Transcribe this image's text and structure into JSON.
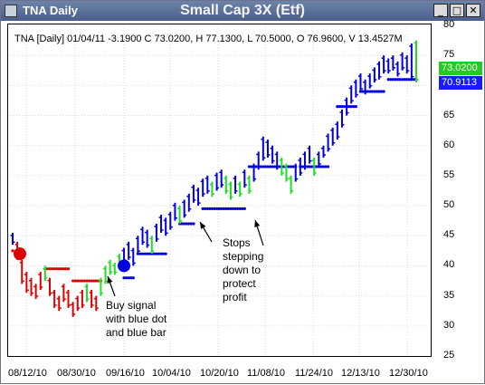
{
  "window": {
    "app_title": "TNA Daily",
    "chart_title": "Small Cap 3X (Etf)",
    "minimize": "_",
    "maximize": "□",
    "close": "✕"
  },
  "info_line": "TNA [Daily] 01/04/11  -3.1900 C 73.0200, H 77.1300, L 70.5000, O 76.9600, V 13.4527M",
  "price_badges": {
    "close": "73.0200",
    "stop": "70.9113",
    "close_bg": "#22cc22",
    "stop_bg": "#1a1aff"
  },
  "annotations": {
    "buy_signal": [
      "Buy signal",
      "with blue dot",
      "and blue bar"
    ],
    "stops": [
      "Stops",
      "stepping",
      "down to",
      "protect",
      "profit"
    ]
  },
  "colors": {
    "up": "#0000dd",
    "neutral": "#22dd22",
    "down": "#dd0000"
  },
  "chart_data": {
    "type": "bar",
    "ylim": [
      25,
      80
    ],
    "y_ticks": [
      25,
      30,
      35,
      40,
      45,
      50,
      55,
      60,
      65,
      70,
      75,
      80
    ],
    "x_ticks": [
      "08/12/10",
      "08/30/10",
      "09/16/10",
      "10/04/10",
      "10/20/10",
      "11/08/10",
      "11/24/10",
      "12/13/10",
      "12/30/10"
    ],
    "ohlc": [
      [
        0,
        45.5,
        43.5,
        "b"
      ],
      [
        1,
        44,
        41,
        "r"
      ],
      [
        2,
        41,
        37,
        "r"
      ],
      [
        3,
        39,
        35.5,
        "r"
      ],
      [
        4,
        38,
        35,
        "r"
      ],
      [
        5,
        37,
        34.5,
        "r"
      ],
      [
        6,
        39,
        36,
        "r"
      ],
      [
        7,
        40,
        37.5,
        "g"
      ],
      [
        8,
        38,
        35,
        "r"
      ],
      [
        9,
        36,
        33,
        "r"
      ],
      [
        10,
        35,
        32.5,
        "r"
      ],
      [
        11,
        37,
        34,
        "r"
      ],
      [
        12,
        36,
        33,
        "r"
      ],
      [
        13,
        34,
        31.5,
        "r"
      ],
      [
        14,
        35,
        32.5,
        "r"
      ],
      [
        15,
        36,
        33,
        "r"
      ],
      [
        16,
        37,
        34,
        "g"
      ],
      [
        17,
        36,
        33,
        "r"
      ],
      [
        18,
        35,
        32.5,
        "r"
      ],
      [
        19,
        38,
        35,
        "g"
      ],
      [
        20,
        40,
        37,
        "g"
      ],
      [
        21,
        41,
        38.5,
        "g"
      ],
      [
        22,
        40.5,
        38.5,
        "g"
      ],
      [
        23,
        42,
        39.5,
        "g"
      ],
      [
        24,
        43,
        40.5,
        "b"
      ],
      [
        25,
        44,
        41,
        "b"
      ],
      [
        26,
        43,
        40,
        "b"
      ],
      [
        27,
        45,
        42,
        "b"
      ],
      [
        28,
        46.5,
        43.5,
        "b"
      ],
      [
        29,
        46,
        43,
        "b"
      ],
      [
        30,
        45,
        42,
        "g"
      ],
      [
        31,
        47,
        44,
        "b"
      ],
      [
        32,
        48.5,
        45.5,
        "b"
      ],
      [
        33,
        48,
        45,
        "b"
      ],
      [
        34,
        49,
        46,
        "b"
      ],
      [
        35,
        50.5,
        47.5,
        "b"
      ],
      [
        36,
        50,
        47,
        "g"
      ],
      [
        37,
        51,
        48,
        "b"
      ],
      [
        38,
        52,
        49,
        "b"
      ],
      [
        39,
        53.5,
        50.5,
        "b"
      ],
      [
        40,
        53,
        50,
        "b"
      ],
      [
        41,
        54.5,
        51.5,
        "b"
      ],
      [
        42,
        55,
        52,
        "b"
      ],
      [
        43,
        54,
        51.5,
        "g"
      ],
      [
        44,
        55.5,
        52.5,
        "b"
      ],
      [
        45,
        56,
        53,
        "b"
      ],
      [
        46,
        55,
        52,
        "g"
      ],
      [
        47,
        54,
        51,
        "g"
      ],
      [
        48,
        55,
        52,
        "b"
      ],
      [
        49,
        54,
        51.5,
        "g"
      ],
      [
        50,
        56,
        53,
        "b"
      ],
      [
        51,
        55,
        52,
        "g"
      ],
      [
        52,
        57,
        54,
        "b"
      ],
      [
        53,
        59,
        56,
        "b"
      ],
      [
        54,
        61.5,
        57.5,
        "b"
      ],
      [
        55,
        61,
        58,
        "b"
      ],
      [
        56,
        60,
        57,
        "b"
      ],
      [
        57,
        59,
        56,
        "b"
      ],
      [
        58,
        58,
        55,
        "g"
      ],
      [
        59,
        57,
        54,
        "g"
      ],
      [
        60,
        55,
        52,
        "g"
      ],
      [
        61,
        57,
        54,
        "b"
      ],
      [
        62,
        58,
        55,
        "b"
      ],
      [
        63,
        59,
        56,
        "b"
      ],
      [
        64,
        60,
        57,
        "b"
      ],
      [
        65,
        58,
        55,
        "g"
      ],
      [
        66,
        59,
        56.5,
        "b"
      ],
      [
        67,
        60,
        58,
        "b"
      ],
      [
        68,
        62,
        59,
        "b"
      ],
      [
        69,
        63,
        60,
        "b"
      ],
      [
        70,
        64,
        61,
        "b"
      ],
      [
        71,
        66,
        63,
        "b"
      ],
      [
        72,
        68,
        65,
        "b"
      ],
      [
        73,
        70,
        67,
        "b"
      ],
      [
        74,
        71,
        68,
        "b"
      ],
      [
        75,
        72,
        69,
        "b"
      ],
      [
        76,
        71,
        68.5,
        "b"
      ],
      [
        77,
        72,
        69.5,
        "b"
      ],
      [
        78,
        73,
        70.5,
        "b"
      ],
      [
        79,
        74,
        71,
        "b"
      ],
      [
        80,
        75,
        72,
        "b"
      ],
      [
        81,
        74.5,
        72,
        "b"
      ],
      [
        82,
        75,
        72.5,
        "b"
      ],
      [
        83,
        74,
        71.5,
        "b"
      ],
      [
        84,
        75.5,
        72.5,
        "b"
      ],
      [
        85,
        75,
        72,
        "b"
      ],
      [
        86,
        77,
        71,
        "b"
      ],
      [
        87,
        77.5,
        70.5,
        "g"
      ]
    ],
    "stop_levels": [
      {
        "from": 0,
        "to": 0,
        "value": 42.5,
        "color": "r"
      },
      {
        "from": 7,
        "to": 12,
        "value": 39.5,
        "color": "r"
      },
      {
        "from": 13,
        "to": 19,
        "value": 37.5,
        "color": "r"
      },
      {
        "from": 24,
        "to": 26,
        "value": 38,
        "color": "b"
      },
      {
        "from": 27,
        "to": 33,
        "value": 42,
        "color": "b"
      },
      {
        "from": 36,
        "to": 39,
        "value": 47,
        "color": "b"
      },
      {
        "from": 41,
        "to": 50,
        "value": 49.5,
        "color": "b"
      },
      {
        "from": 51,
        "to": 61,
        "value": 56.5,
        "color": "b"
      },
      {
        "from": 62,
        "to": 68,
        "value": 56.5,
        "color": "b"
      },
      {
        "from": 70,
        "to": 74,
        "value": 66.5,
        "color": "b"
      },
      {
        "from": 75,
        "to": 80,
        "value": 69,
        "color": "b"
      },
      {
        "from": 81,
        "to": 87,
        "value": 71,
        "color": "b"
      }
    ],
    "signals": [
      {
        "index": 0,
        "value": 42,
        "color": "r"
      },
      {
        "index": 24,
        "value": 40,
        "color": "b"
      }
    ]
  }
}
